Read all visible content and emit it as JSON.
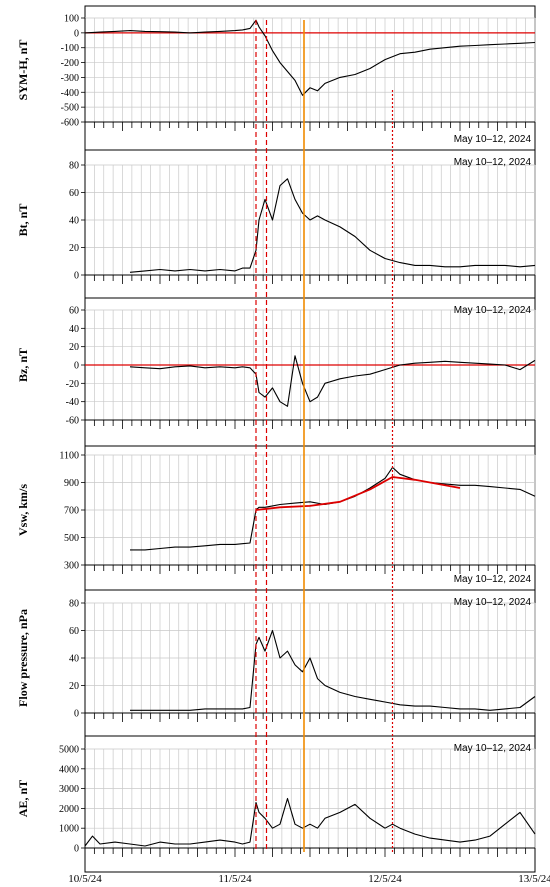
{
  "chart_data": {
    "type": "line",
    "x_ticks": [
      "10/5/24",
      "11/5/24",
      "12/5/24",
      "13/5/24"
    ],
    "x_range": [
      0,
      3
    ],
    "vertical_markers": [
      {
        "x": 1.14,
        "style": "dashed",
        "color": "#dd0000"
      },
      {
        "x": 1.21,
        "style": "dashed",
        "color": "#dd0000"
      },
      {
        "x": 1.46,
        "style": "solid",
        "color": "#f08a00"
      },
      {
        "x": 2.05,
        "style": "dotted",
        "color": "#dd0000"
      }
    ],
    "panels": [
      {
        "ylabel": "SYM-H, nT",
        "date_label": "May 10–12, 2024",
        "date_label_corner": "bottom-right",
        "ylim": [
          -600,
          100
        ],
        "yticks": [
          100,
          0,
          -100,
          -200,
          -300,
          -400,
          -500,
          -600
        ],
        "baseline": 0,
        "series": [
          {
            "x": [
              0,
              0.1,
              0.2,
              0.3,
              0.4,
              0.5,
              0.6,
              0.7,
              0.8,
              0.9,
              1.0,
              1.05,
              1.1,
              1.14,
              1.16,
              1.2,
              1.25,
              1.3,
              1.35,
              1.4,
              1.45,
              1.5,
              1.55,
              1.6,
              1.7,
              1.8,
              1.9,
              2.0,
              2.1,
              2.2,
              2.3,
              2.4,
              2.5,
              2.6,
              2.7,
              2.8,
              2.9,
              3.0
            ],
            "y": [
              0,
              5,
              10,
              15,
              10,
              8,
              5,
              0,
              5,
              10,
              15,
              20,
              30,
              85,
              40,
              -20,
              -120,
              -200,
              -260,
              -320,
              -420,
              -370,
              -390,
              -340,
              -300,
              -280,
              -240,
              -180,
              -140,
              -130,
              -110,
              -100,
              -90,
              -85,
              -80,
              -75,
              -70,
              -65
            ]
          }
        ]
      },
      {
        "ylabel": "Bt, nT",
        "date_label": "May 10–12, 2024",
        "date_label_corner": "top-right",
        "ylim": [
          0,
          80
        ],
        "yticks": [
          0,
          20,
          40,
          60,
          80
        ],
        "series": [
          {
            "x": [
              0.3,
              0.4,
              0.5,
              0.6,
              0.7,
              0.8,
              0.9,
              1.0,
              1.05,
              1.1,
              1.14,
              1.16,
              1.2,
              1.25,
              1.3,
              1.35,
              1.4,
              1.45,
              1.5,
              1.55,
              1.6,
              1.7,
              1.8,
              1.9,
              2.0,
              2.1,
              2.2,
              2.3,
              2.4,
              2.5,
              2.6,
              2.7,
              2.8,
              2.9,
              3.0
            ],
            "y": [
              2,
              3,
              4,
              3,
              4,
              3,
              4,
              3,
              5,
              5,
              18,
              40,
              55,
              40,
              65,
              70,
              55,
              45,
              40,
              43,
              40,
              35,
              28,
              18,
              12,
              9,
              7,
              7,
              6,
              6,
              7,
              7,
              7,
              6,
              7
            ]
          }
        ]
      },
      {
        "ylabel": "Bz, nT",
        "date_label": "May 10–12, 2024",
        "date_label_corner": "top-right",
        "ylim": [
          -60,
          60
        ],
        "yticks": [
          60,
          40,
          20,
          0,
          -20,
          -40,
          -60
        ],
        "baseline": 0,
        "series": [
          {
            "x": [
              0.3,
              0.4,
              0.5,
              0.6,
              0.7,
              0.8,
              0.9,
              1.0,
              1.05,
              1.1,
              1.14,
              1.16,
              1.2,
              1.25,
              1.3,
              1.35,
              1.4,
              1.45,
              1.5,
              1.55,
              1.6,
              1.7,
              1.8,
              1.9,
              2.0,
              2.1,
              2.2,
              2.3,
              2.4,
              2.5,
              2.6,
              2.7,
              2.8,
              2.9,
              3.0
            ],
            "y": [
              -2,
              -3,
              -4,
              -2,
              -1,
              -3,
              -2,
              -3,
              -2,
              -3,
              -10,
              -30,
              -35,
              -25,
              -40,
              -45,
              10,
              -20,
              -40,
              -35,
              -20,
              -15,
              -12,
              -10,
              -5,
              0,
              2,
              3,
              4,
              3,
              2,
              1,
              0,
              -5,
              5
            ]
          }
        ]
      },
      {
        "ylabel": "Vsw, km/s",
        "date_label": "May 10–12, 2024",
        "date_label_corner": "bottom-right",
        "ylim": [
          300,
          1100
        ],
        "yticks": [
          1100,
          900,
          700,
          500,
          300
        ],
        "series": [
          {
            "x": [
              0.3,
              0.4,
              0.5,
              0.6,
              0.7,
              0.8,
              0.9,
              1.0,
              1.05,
              1.1,
              1.14,
              1.16,
              1.2,
              1.25,
              1.3,
              1.4,
              1.5,
              1.6,
              1.7,
              1.8,
              1.9,
              2.0,
              2.05,
              2.1,
              2.2,
              2.3,
              2.4,
              2.5,
              2.6,
              2.7,
              2.8,
              2.9,
              3.0
            ],
            "y": [
              410,
              410,
              420,
              430,
              430,
              440,
              450,
              450,
              455,
              460,
              700,
              720,
              720,
              730,
              740,
              750,
              760,
              740,
              760,
              800,
              860,
              930,
              1010,
              960,
              920,
              900,
              890,
              880,
              880,
              870,
              860,
              850,
              800
            ]
          },
          {
            "x": [
              1.14,
              1.3,
              1.5,
              1.7,
              1.9,
              2.05,
              2.2,
              2.4,
              2.5
            ],
            "y": [
              700,
              720,
              730,
              760,
              850,
              940,
              920,
              880,
              860
            ],
            "color": "#dd0000"
          }
        ]
      },
      {
        "ylabel": "Flow pressure, nPa",
        "date_label": "May 10–12, 2024",
        "date_label_corner": "top-right",
        "ylim": [
          0,
          80
        ],
        "yticks": [
          0,
          20,
          40,
          60,
          80
        ],
        "series": [
          {
            "x": [
              0.3,
              0.4,
              0.5,
              0.6,
              0.7,
              0.8,
              0.9,
              1.0,
              1.05,
              1.1,
              1.14,
              1.16,
              1.2,
              1.25,
              1.3,
              1.35,
              1.4,
              1.45,
              1.5,
              1.55,
              1.6,
              1.7,
              1.8,
              1.9,
              2.0,
              2.1,
              2.2,
              2.3,
              2.4,
              2.5,
              2.6,
              2.7,
              2.8,
              2.9,
              3.0
            ],
            "y": [
              2,
              2,
              2,
              2,
              2,
              3,
              3,
              3,
              3,
              4,
              50,
              55,
              45,
              60,
              40,
              45,
              35,
              30,
              40,
              25,
              20,
              15,
              12,
              10,
              8,
              6,
              5,
              5,
              4,
              3,
              3,
              2,
              3,
              4,
              12
            ]
          }
        ]
      },
      {
        "ylabel": "AE, nT",
        "date_label": "May 10–12, 2024",
        "date_label_corner": "top-right",
        "ylim": [
          0,
          5000
        ],
        "yticks": [
          0,
          1000,
          2000,
          3000,
          4000,
          5000
        ],
        "series": [
          {
            "x": [
              0,
              0.05,
              0.1,
              0.2,
              0.3,
              0.4,
              0.5,
              0.6,
              0.7,
              0.8,
              0.9,
              1.0,
              1.05,
              1.1,
              1.14,
              1.16,
              1.2,
              1.25,
              1.3,
              1.35,
              1.4,
              1.45,
              1.5,
              1.55,
              1.6,
              1.7,
              1.8,
              1.9,
              2.0,
              2.05,
              2.1,
              2.2,
              2.3,
              2.4,
              2.5,
              2.6,
              2.7,
              2.8,
              2.9,
              3.0
            ],
            "y": [
              100,
              600,
              200,
              300,
              200,
              100,
              300,
              200,
              200,
              300,
              400,
              300,
              200,
              300,
              2300,
              1800,
              1500,
              1000,
              1200,
              2500,
              1200,
              1000,
              1200,
              1000,
              1500,
              1800,
              2200,
              1500,
              1000,
              1200,
              1000,
              700,
              500,
              400,
              300,
              400,
              600,
              1200,
              1800,
              700
            ]
          }
        ]
      }
    ]
  }
}
